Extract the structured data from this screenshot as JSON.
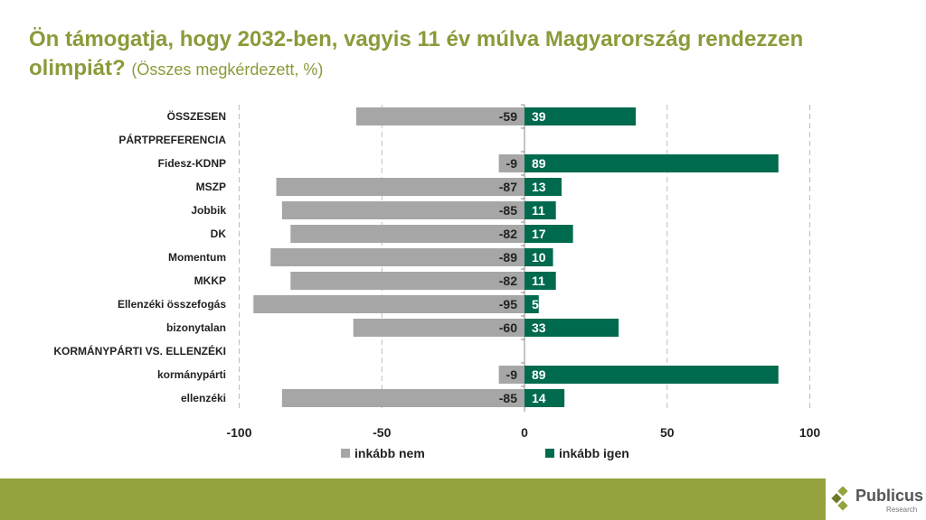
{
  "title": {
    "main": "Ön támogatja, hogy 2032-ben, vagyis 11 év múlva Magyarország rendezzen olimpiát?",
    "sub": "(Összes megkérdezett, %)"
  },
  "logo": {
    "name": "Publicus",
    "sub": "Research"
  },
  "colors": {
    "neg": "#a6a6a6",
    "pos": "#006a4e",
    "title": "#8a9b3a",
    "band": "#95a23d"
  },
  "chart_data": {
    "type": "bar",
    "orientation": "horizontal-diverging",
    "categories": [
      "ÖSSZESEN",
      "PÁRTPREFERENCIA",
      "Fidesz-KDNP",
      "MSZP",
      "Jobbik",
      "DK",
      "Momentum",
      "MKKP",
      "Ellenzéki összefogás",
      "bizonytalan",
      "KORMÁNYPÁRTI VS. ELLENZÉKI",
      "kormánypárti",
      "ellenzéki"
    ],
    "series": [
      {
        "name": "inkább nem",
        "values": [
          -59,
          null,
          -9,
          -87,
          -85,
          -82,
          -89,
          -82,
          -95,
          -60,
          null,
          -9,
          -85
        ]
      },
      {
        "name": "inkább igen",
        "values": [
          39,
          null,
          89,
          13,
          11,
          17,
          10,
          11,
          5,
          33,
          null,
          89,
          14
        ]
      }
    ],
    "xlim": [
      -100,
      100
    ],
    "xticks": [
      -100,
      -50,
      0,
      50,
      100
    ],
    "grid": "vertical dashed",
    "legend": "bottom"
  }
}
